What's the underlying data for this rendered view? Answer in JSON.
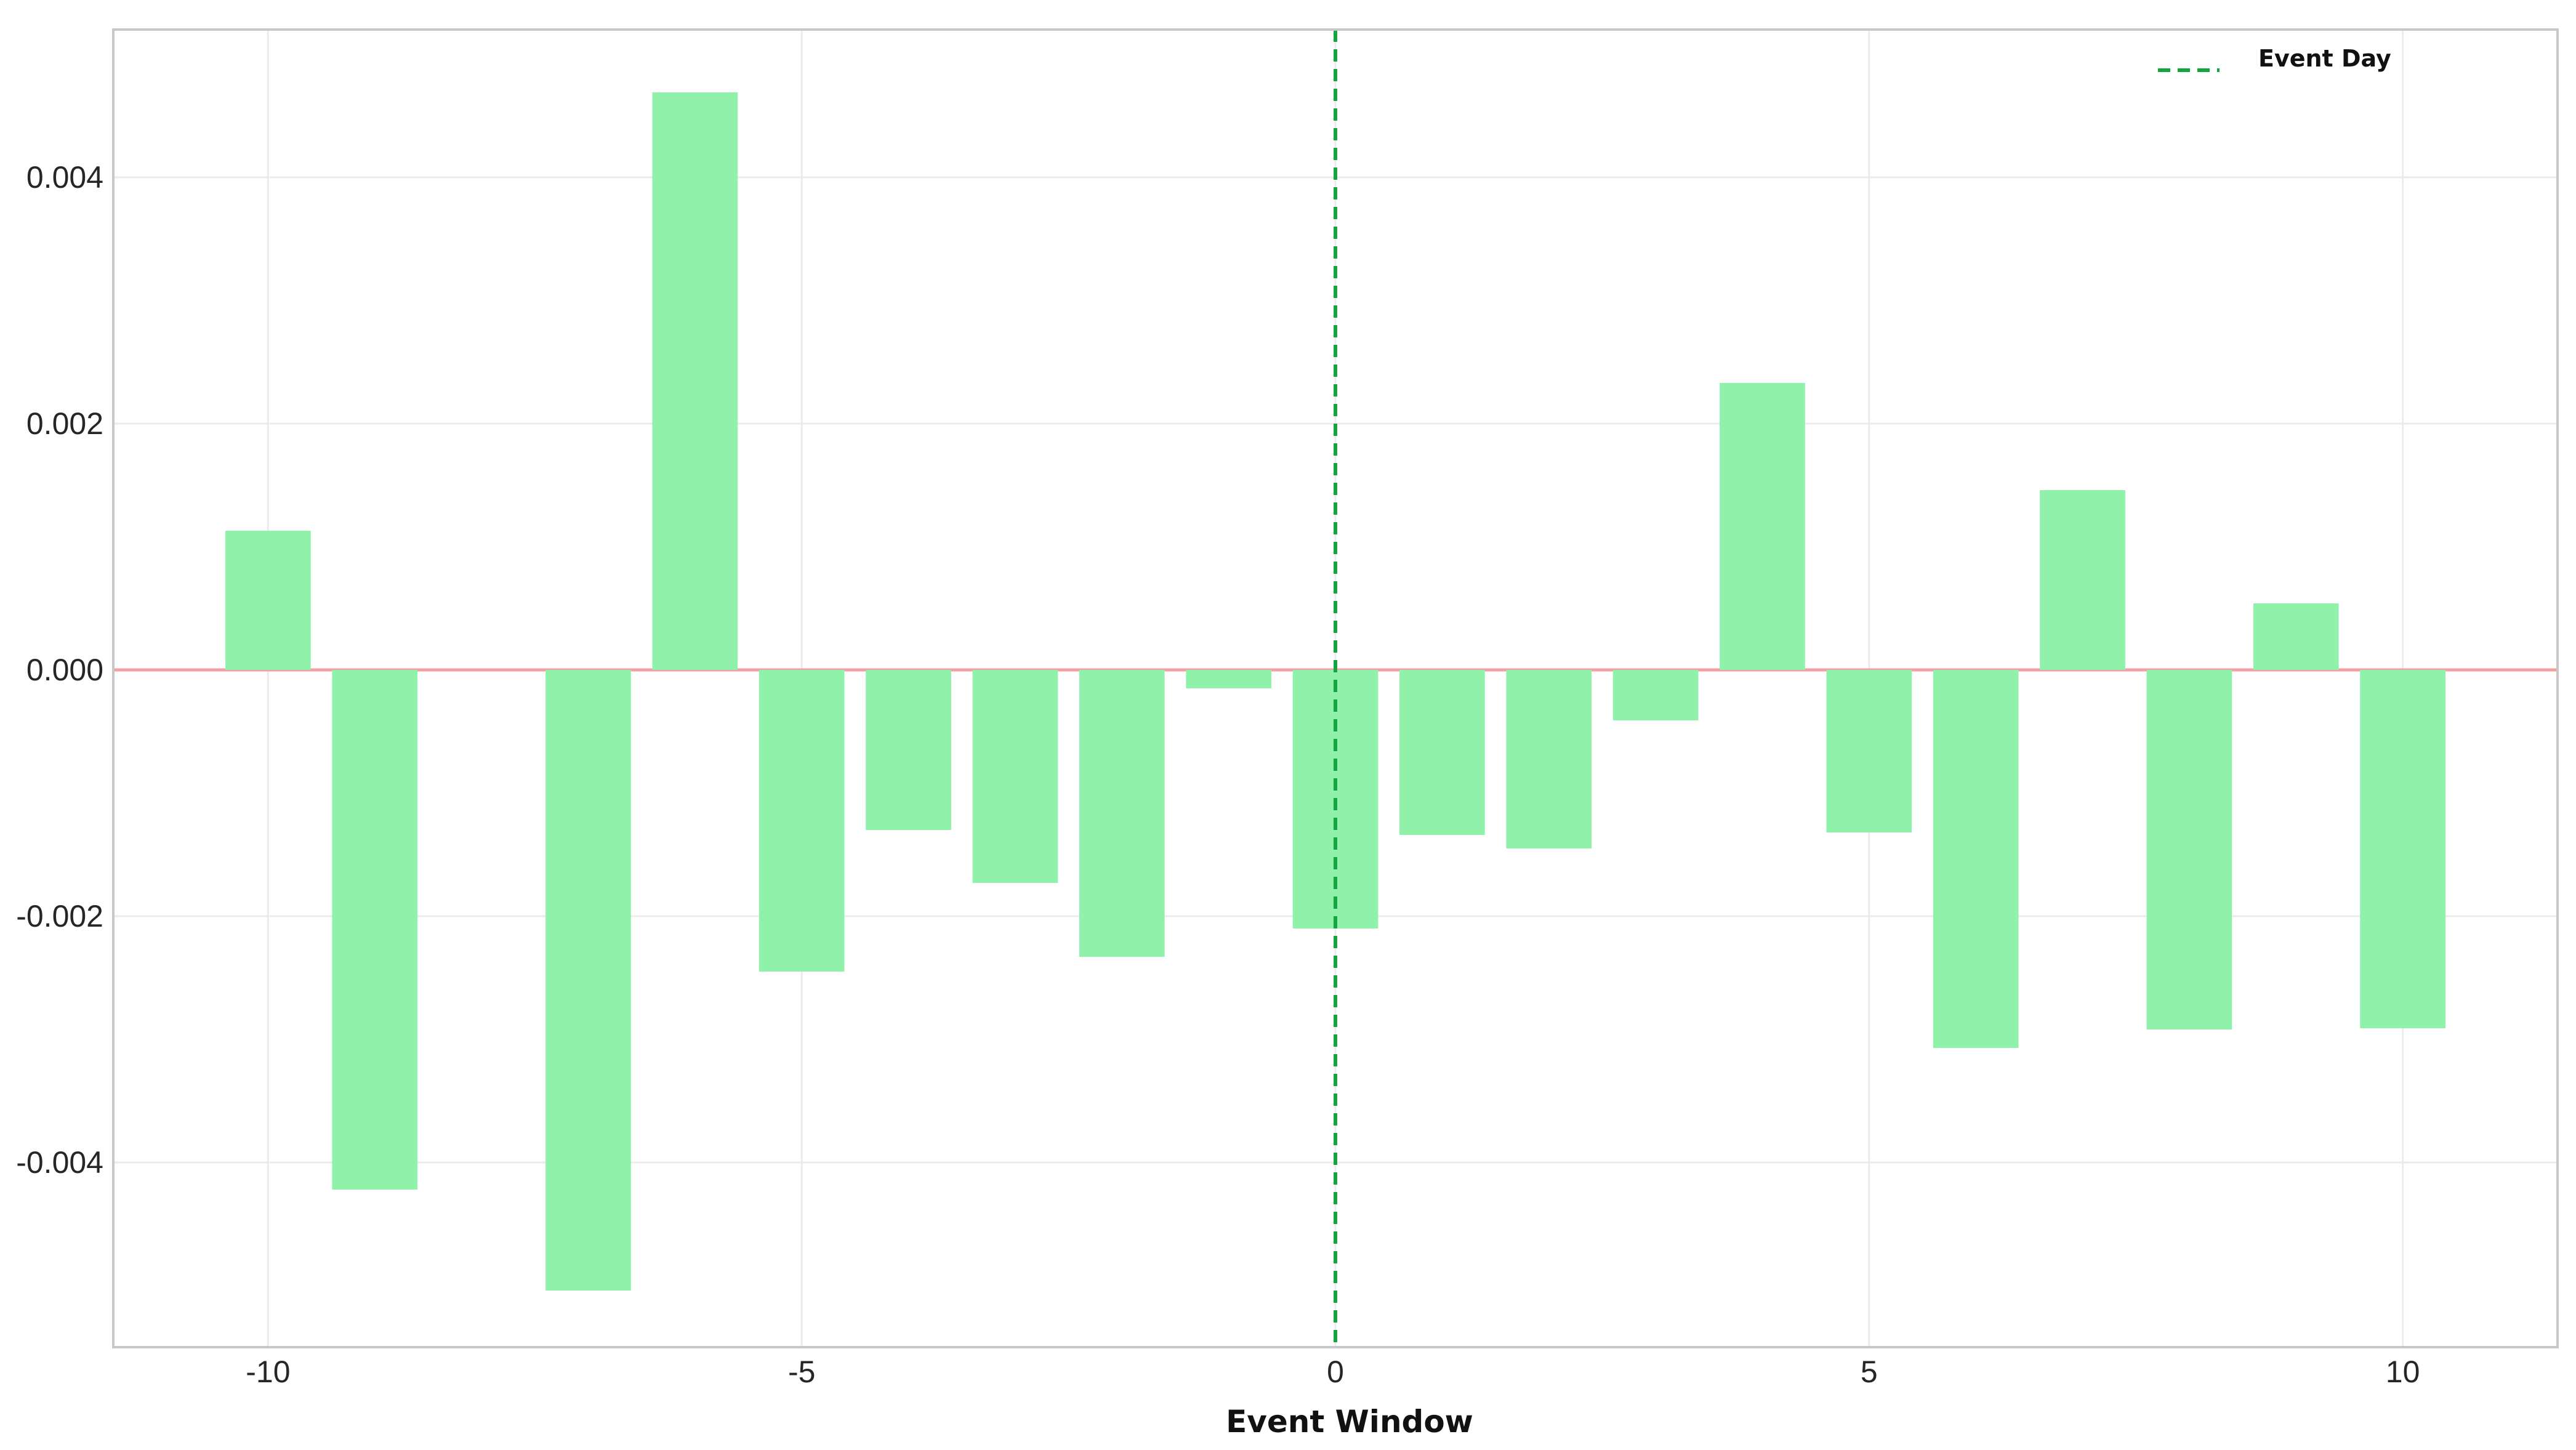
{
  "chart_data": {
    "type": "bar",
    "title": "",
    "xlabel": "Event Window",
    "ylabel": "",
    "x": [
      -10,
      -9,
      -8,
      -7,
      -6,
      -5,
      -4,
      -3,
      -2,
      -1,
      0,
      1,
      2,
      3,
      4,
      5,
      6,
      7,
      8,
      9,
      10
    ],
    "values": [
      0.00113,
      -0.00422,
      0.0,
      -0.00504,
      0.00469,
      -0.00245,
      -0.0013,
      -0.00173,
      -0.00233,
      -0.00015,
      -0.0021,
      -0.00134,
      -0.00145,
      -0.00041,
      0.00233,
      -0.00132,
      -0.00307,
      0.00146,
      -0.00292,
      0.00054,
      -0.00291
    ],
    "xlim": [
      -11.45,
      11.45
    ],
    "ylim": [
      -0.0055,
      0.0052
    ],
    "x_ticks": [
      -10,
      -5,
      0,
      5,
      10
    ],
    "x_tick_labels": [
      "-10",
      "-5",
      "0",
      "5",
      "10"
    ],
    "y_ticks": [
      -0.004,
      -0.002,
      0.0,
      0.002,
      0.004
    ],
    "y_tick_labels": [
      "-0.004",
      "-0.002",
      "0.000",
      "0.002",
      "0.004"
    ],
    "reference_lines": {
      "vertical": {
        "x": 0,
        "label": "Event Day",
        "style": "dashed",
        "color": "#16a340"
      },
      "horizontal": {
        "y": 0,
        "color": "#f4a0a0"
      }
    },
    "grid": true,
    "legend": {
      "position": "top-right",
      "entries": [
        "Event Day"
      ]
    },
    "colors": {
      "bar": "#90f2aa",
      "event_line": "#16a340",
      "zero_line": "#f4a0a0",
      "grid": "#ebebeb",
      "frame": "#c8c8c8"
    }
  }
}
